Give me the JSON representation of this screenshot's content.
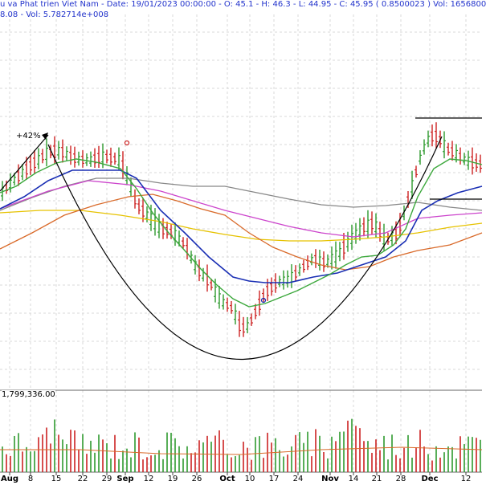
{
  "header": {
    "line1": "u va Phat trien Viet Nam  - Date: 19/01/2023 00:00:00 - O: 45.1 - H: 46.3 - L: 44.95 - C: 45.95 ( 0.8500023 ) Vol: 1656800",
    "line2": "8.08 - Vol: 5.782714e+008"
  },
  "volume_axis_label": "1,799,336.00",
  "annotations": {
    "gain_label": "+42%"
  },
  "colors": {
    "up": "#2e9a2e",
    "down": "#cc2222",
    "ma_blue": "#1a2fb4",
    "ma_green": "#3ca83c",
    "ma_magenta": "#cc44cc",
    "ma_orange": "#d96a2a",
    "ma_yellow": "#e6c200",
    "ma_gray": "#888888",
    "grid": "#d8d8d8",
    "pattern": "#000000"
  },
  "chart_data": {
    "type": "candlestick",
    "x_tick_labels": [
      "Aug",
      "8",
      "15",
      "22",
      "29",
      "Sep",
      "12",
      "19",
      "26",
      "Oct",
      "10",
      "17",
      "24",
      "Nov",
      "14",
      "21",
      "28",
      "Dec",
      "12"
    ],
    "bold_month_ticks": [
      "Aug",
      "Sep",
      "Oct",
      "Nov",
      "Dec"
    ],
    "grid": true,
    "volume_panel": true,
    "pattern": "cup",
    "ohlc_last": {
      "open": 45.1,
      "high": 46.3,
      "low": 44.95,
      "close": 45.95,
      "change": 0.8500023,
      "volume": 1656800
    }
  }
}
